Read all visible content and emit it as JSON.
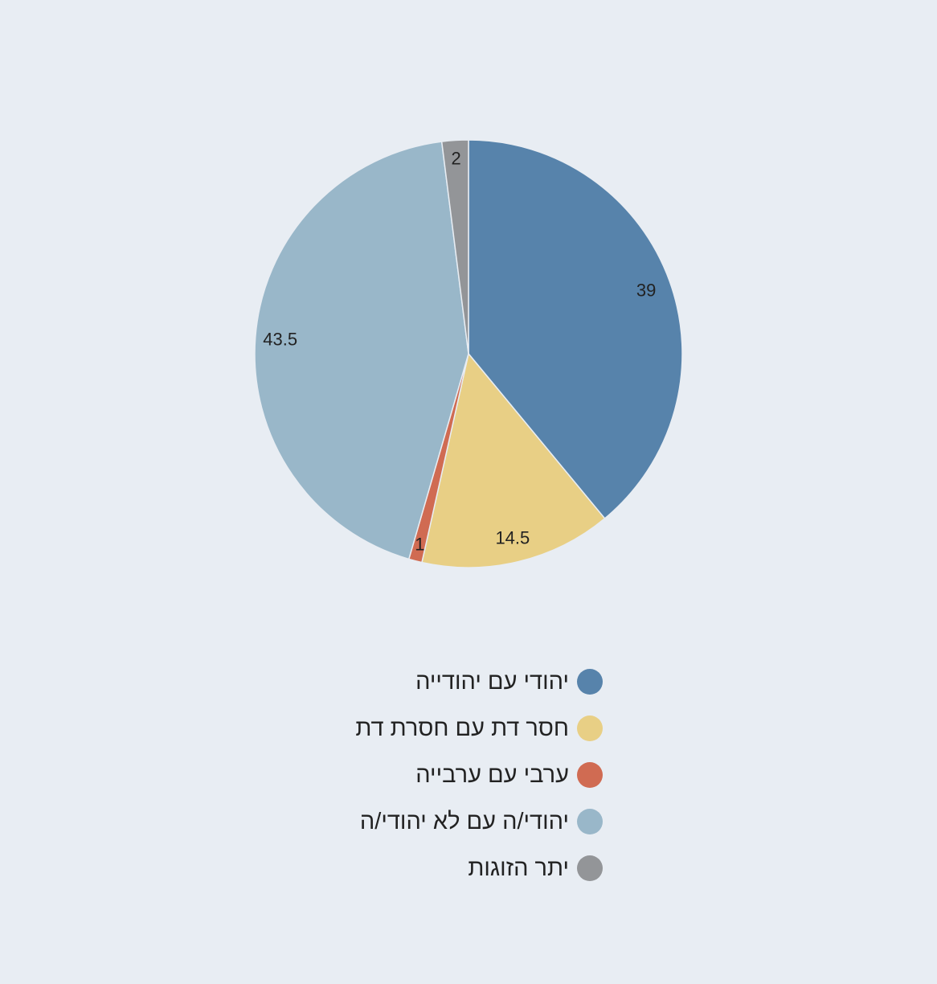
{
  "chart_data": {
    "type": "pie",
    "title": "",
    "start": "top",
    "direction": "clockwise",
    "slices": [
      {
        "name": "יהודי עם יהודייה",
        "value": 39,
        "label": "39",
        "color": "#5783ab"
      },
      {
        "name": "חסר דת עם חסרת דת",
        "value": 14.5,
        "label": "14.5",
        "color": "#e8cf85"
      },
      {
        "name": "ערבי עם ערבייה",
        "value": 1,
        "label": "1",
        "color": "#d06b52"
      },
      {
        "name": "יהודי/ה עם לא יהודי/ה",
        "value": 43.5,
        "label": "43.5",
        "color": "#99b7c9"
      },
      {
        "name": "יתר הזוגות",
        "value": 2,
        "label": "2",
        "color": "#939598"
      }
    ],
    "legend_placement": "bottom"
  }
}
